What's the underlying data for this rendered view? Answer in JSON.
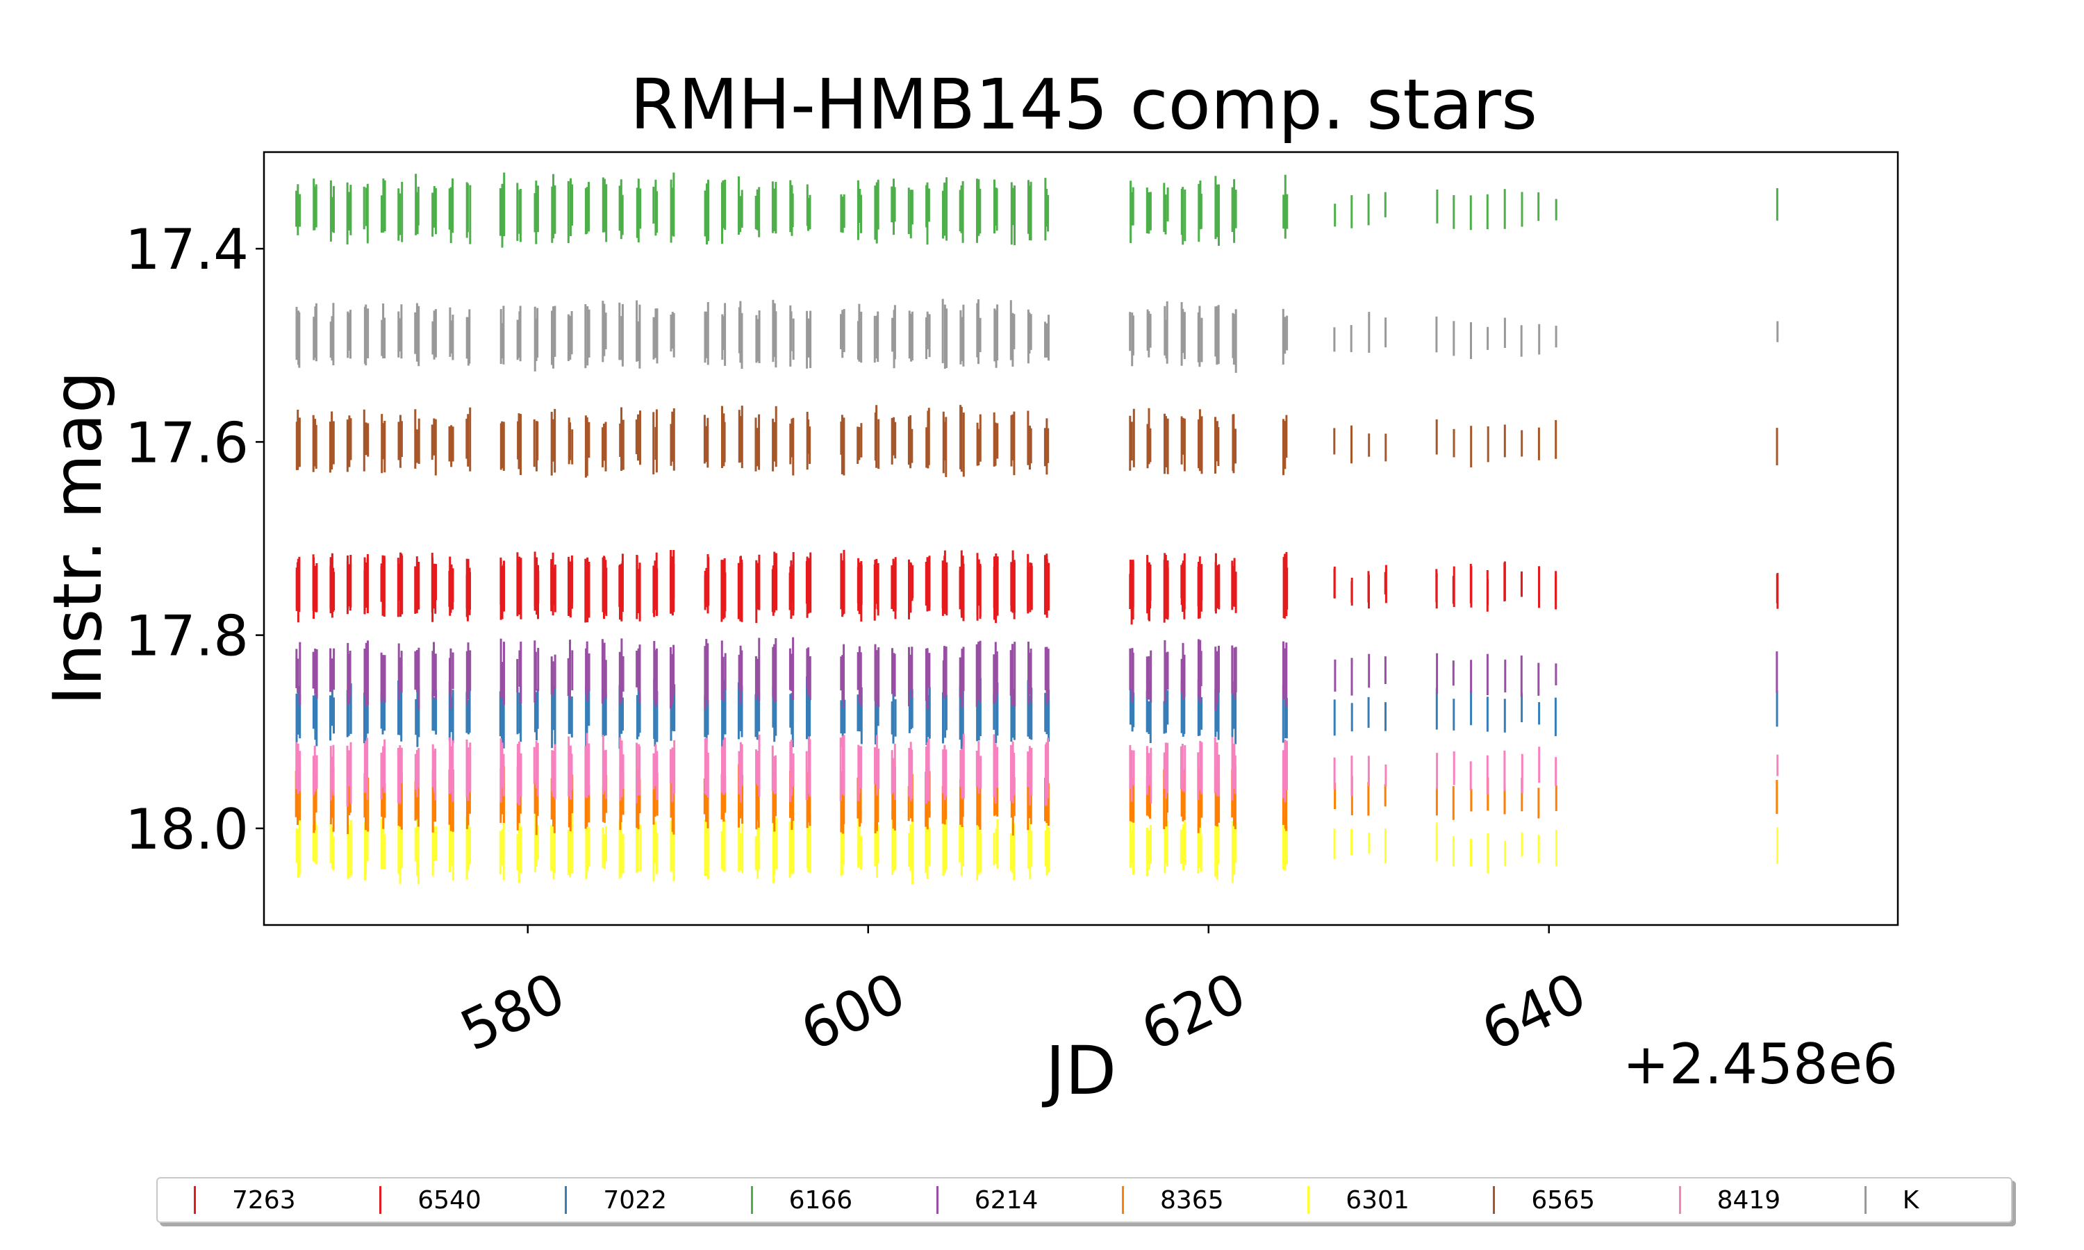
{
  "chart_data": {
    "type": "scatter",
    "title": "RMH-HMB145 comp. stars",
    "xlabel": "JD",
    "ylabel": "Instr. mag",
    "x_offset_label": "+2.458e6",
    "xlim": [
      564.5,
      660.5
    ],
    "ylim": [
      17.3,
      18.1
    ],
    "y_inverted": true,
    "xticks": [
      580,
      600,
      620,
      640
    ],
    "yticks": [
      17.4,
      17.6,
      17.8,
      18.0
    ],
    "ytick_labels": [
      "17.4",
      "17.6",
      "17.8",
      "18.0"
    ],
    "grid": false,
    "legend_position": "bottom",
    "nights": [
      566.5,
      567.5,
      568.5,
      569.5,
      570.5,
      571.5,
      572.5,
      573.5,
      574.5,
      575.5,
      576.5,
      578.5,
      579.5,
      580.5,
      581.5,
      582.5,
      583.5,
      584.5,
      585.5,
      586.5,
      587.5,
      588.5,
      590.5,
      591.5,
      592.5,
      593.5,
      594.5,
      595.5,
      596.5,
      598.5,
      599.5,
      600.5,
      601.5,
      602.5,
      603.5,
      604.5,
      605.5,
      606.5,
      607.5,
      608.5,
      609.5,
      610.5,
      615.5,
      616.5,
      617.5,
      618.5,
      619.5,
      620.5,
      621.5,
      624.5,
      627.5,
      628.5,
      629.5,
      630.5,
      633.5,
      634.5,
      635.5,
      636.5,
      637.5,
      638.5,
      639.5,
      640.5,
      653.5
    ],
    "series": [
      {
        "name": "7263",
        "color": "#e41a1c",
        "mag": 17.75
      },
      {
        "name": "6540",
        "color": "#e41a1c",
        "mag": 17.75
      },
      {
        "name": "7022",
        "color": "#377eb8",
        "mag": 17.88
      },
      {
        "name": "6166",
        "color": "#4daf4a",
        "mag": 17.36
      },
      {
        "name": "6214",
        "color": "#984ea3",
        "mag": 17.84
      },
      {
        "name": "8365",
        "color": "#ff7f00",
        "mag": 17.97
      },
      {
        "name": "6301",
        "color": "#ffff33",
        "mag": 18.02
      },
      {
        "name": "6565",
        "color": "#a65628",
        "mag": 17.6
      },
      {
        "name": "8419",
        "color": "#f781bf",
        "mag": 17.94
      },
      {
        "name": "K",
        "color": "#999999",
        "mag": 17.49
      }
    ]
  }
}
